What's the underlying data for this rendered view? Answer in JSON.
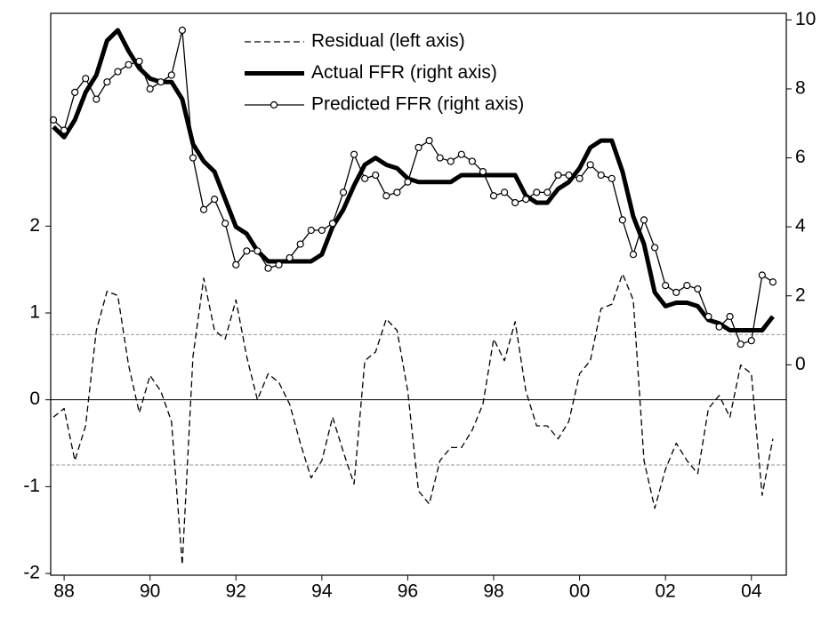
{
  "chart_data": {
    "type": "line",
    "categories": [
      null,
      "88",
      null,
      null,
      null,
      null,
      null,
      null,
      null,
      "90",
      null,
      null,
      null,
      null,
      null,
      null,
      null,
      "92",
      null,
      null,
      null,
      null,
      null,
      null,
      null,
      "94",
      null,
      null,
      null,
      null,
      null,
      null,
      null,
      "96",
      null,
      null,
      null,
      null,
      null,
      null,
      null,
      "98",
      null,
      null,
      null,
      null,
      null,
      null,
      null,
      "00",
      null,
      null,
      null,
      null,
      null,
      null,
      null,
      "02",
      null,
      null,
      null,
      null,
      null,
      null,
      null,
      "04",
      null,
      null
    ],
    "series": [
      {
        "name": "Residual (left axis)",
        "color": "#000000",
        "dash": true,
        "width": 1.3,
        "values": [
          -0.2,
          -0.1,
          -0.7,
          -0.3,
          0.8,
          1.25,
          1.2,
          0.4,
          -0.15,
          0.28,
          0.1,
          -0.25,
          -1.9,
          0.5,
          1.4,
          0.8,
          0.7,
          1.15,
          0.5,
          0.0,
          0.3,
          0.2,
          -0.05,
          -0.5,
          -0.9,
          -0.7,
          -0.2,
          -0.6,
          -0.97,
          0.45,
          0.55,
          0.93,
          0.8,
          0.1,
          -1.05,
          -1.2,
          -0.7,
          -0.55,
          -0.55,
          -0.35,
          -0.05,
          0.7,
          0.45,
          0.9,
          0.1,
          -0.3,
          -0.3,
          -0.45,
          -0.25,
          0.3,
          0.45,
          1.05,
          1.1,
          1.45,
          1.15,
          -0.7,
          -1.25,
          -0.8,
          -0.5,
          -0.7,
          -0.85,
          -0.1,
          0.05,
          -0.2,
          0.4,
          0.3,
          -1.1,
          -0.45
        ]
      },
      {
        "name": "Actual FFR (right axis)",
        "color": "#000000",
        "axis": "y2",
        "width": 5,
        "values": [
          6.9,
          6.6,
          7.1,
          7.9,
          8.4,
          9.4,
          9.7,
          9.1,
          8.6,
          8.3,
          8.2,
          8.2,
          7.7,
          6.4,
          5.9,
          5.6,
          4.8,
          4.0,
          3.8,
          3.3,
          3.0,
          3.0,
          3.0,
          3.0,
          3.0,
          3.2,
          4.0,
          4.5,
          5.2,
          5.8,
          6.0,
          5.8,
          5.7,
          5.4,
          5.3,
          5.3,
          5.3,
          5.3,
          5.5,
          5.5,
          5.5,
          5.5,
          5.5,
          5.5,
          4.9,
          4.7,
          4.7,
          5.1,
          5.3,
          5.7,
          6.3,
          6.5,
          6.5,
          5.6,
          4.3,
          3.5,
          2.1,
          1.7,
          1.8,
          1.8,
          1.7,
          1.3,
          1.2,
          1.0,
          1.0,
          1.0,
          1.0,
          1.4
        ]
      },
      {
        "name": "Predicted FFR (right axis)",
        "color": "#000000",
        "axis": "y2",
        "width": 1.3,
        "marker": "circle",
        "values": [
          7.1,
          6.8,
          7.9,
          8.3,
          7.7,
          8.2,
          8.5,
          8.7,
          8.8,
          8.0,
          8.2,
          8.4,
          9.7,
          6.0,
          4.5,
          4.8,
          4.1,
          2.9,
          3.3,
          3.3,
          2.8,
          2.9,
          3.1,
          3.5,
          3.9,
          3.9,
          4.1,
          5.0,
          6.1,
          5.4,
          5.5,
          4.9,
          5.0,
          5.3,
          6.3,
          6.5,
          6.0,
          5.9,
          6.1,
          5.9,
          5.6,
          4.9,
          5.0,
          4.7,
          4.8,
          5.0,
          5.0,
          5.5,
          5.5,
          5.4,
          5.8,
          5.5,
          5.4,
          4.2,
          3.2,
          4.2,
          3.4,
          2.3,
          2.1,
          2.3,
          2.2,
          1.4,
          1.1,
          1.4,
          0.6,
          0.7,
          2.6,
          2.4
        ]
      }
    ],
    "ylim": [
      -2.02,
      4.45
    ],
    "yticks": [
      -2,
      -1,
      0,
      1,
      2
    ],
    "y2lim": [
      -6.1,
      10.19
    ],
    "y2ticks": [
      0,
      2,
      4,
      6,
      8,
      10
    ],
    "hlines": [
      {
        "value": 0,
        "color": "#000000"
      },
      {
        "value": 0.75,
        "color": "#999999",
        "dash": true
      },
      {
        "value": -0.75,
        "color": "#999999",
        "dash": true
      }
    ],
    "legend": "top"
  }
}
